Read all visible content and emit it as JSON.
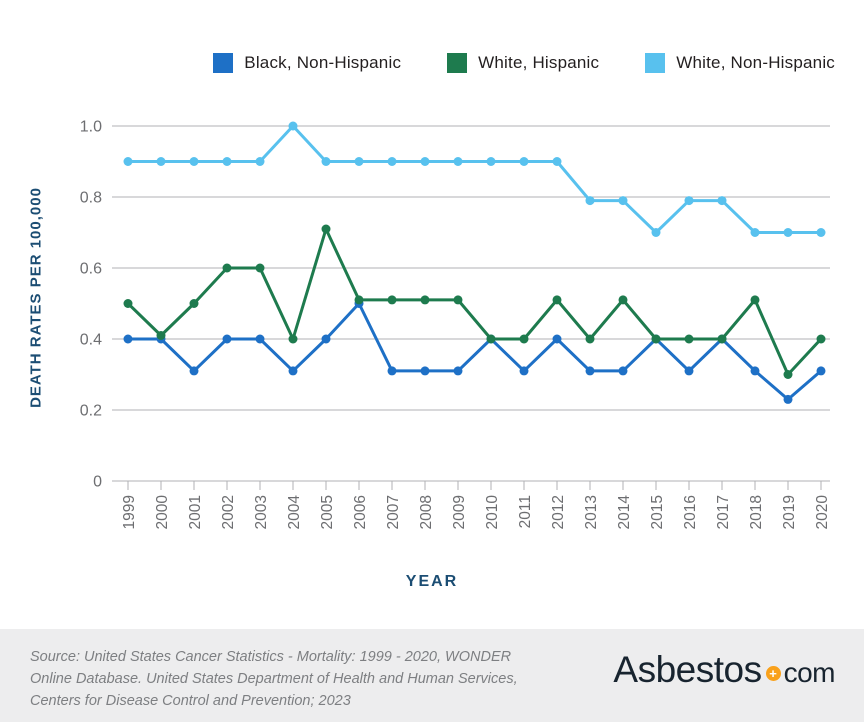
{
  "chart_data": {
    "type": "line",
    "x": [
      1999,
      2000,
      2001,
      2002,
      2003,
      2004,
      2005,
      2006,
      2007,
      2008,
      2009,
      2010,
      2011,
      2012,
      2013,
      2014,
      2015,
      2016,
      2017,
      2018,
      2019,
      2020
    ],
    "series": [
      {
        "name": "Black, Non-Hispanic",
        "color": "#1e70c6",
        "values": [
          0.4,
          0.4,
          0.31,
          0.4,
          0.4,
          0.31,
          0.4,
          0.5,
          0.31,
          0.31,
          0.31,
          0.4,
          0.31,
          0.4,
          0.31,
          0.31,
          0.4,
          0.31,
          0.4,
          0.31,
          0.23,
          0.31
        ]
      },
      {
        "name": "White, Hispanic",
        "color": "#1e7b4e",
        "values": [
          0.5,
          0.41,
          0.5,
          0.6,
          0.6,
          0.4,
          0.71,
          0.51,
          0.51,
          0.51,
          0.51,
          0.4,
          0.4,
          0.51,
          0.4,
          0.51,
          0.4,
          0.4,
          0.4,
          0.51,
          0.3,
          0.4
        ]
      },
      {
        "name": "White, Non-Hispanic",
        "color": "#58c1ee",
        "values": [
          0.9,
          0.9,
          0.9,
          0.9,
          0.9,
          1.0,
          0.9,
          0.9,
          0.9,
          0.9,
          0.9,
          0.9,
          0.9,
          0.9,
          0.79,
          0.79,
          0.7,
          0.79,
          0.79,
          0.7,
          0.7,
          0.7
        ]
      }
    ],
    "title": "",
    "xlabel": "YEAR",
    "ylabel": "DEATH RATES PER 100,000",
    "ylim": [
      0,
      1.0
    ],
    "y_ticks": [
      "1.0",
      "0.8",
      "0.6",
      "0.4",
      "0.2",
      "0"
    ],
    "y_tick_values": [
      1.0,
      0.8,
      0.6,
      0.4,
      0.2,
      0
    ],
    "grid": true,
    "grid_color": "#b0b2b4",
    "tick_label_color": "#6d6e71",
    "legend_position": "top"
  },
  "footer": {
    "source_lines": [
      "Source: United States Cancer Statistics - Mortality: 1999 - 2020, WONDER",
      "Online Database. United States Department of Health and Human Services,",
      "Centers for Disease Control and Prevention; 2023"
    ],
    "logo": {
      "brand": "Asbestos",
      "suffix": "com",
      "dot_icon": "plus-circle-icon",
      "accent_color": "#f9a11b",
      "text_color": "#18242f"
    }
  },
  "colors": {
    "axis_title": "#1b4d73",
    "footer_background": "#ededee",
    "source_text": "#7d7f82"
  }
}
